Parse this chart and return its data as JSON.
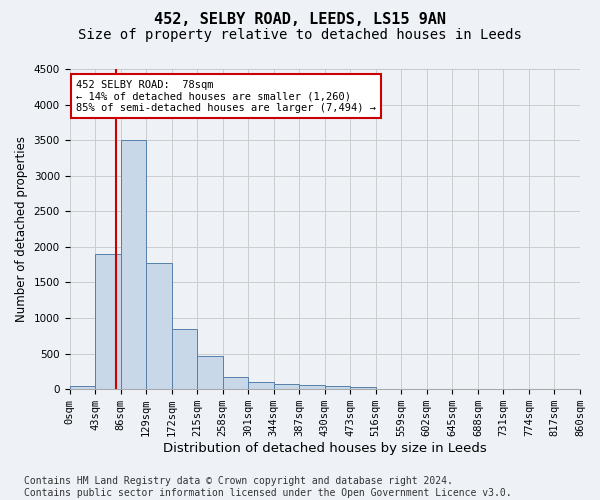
{
  "title1": "452, SELBY ROAD, LEEDS, LS15 9AN",
  "title2": "Size of property relative to detached houses in Leeds",
  "xlabel": "Distribution of detached houses by size in Leeds",
  "ylabel": "Number of detached properties",
  "bin_edges": [
    0,
    43,
    86,
    129,
    172,
    215,
    258,
    301,
    344,
    387,
    430,
    473,
    516,
    559,
    602,
    645,
    688,
    731,
    774,
    817,
    860
  ],
  "bin_labels": [
    "0sqm",
    "43sqm",
    "86sqm",
    "129sqm",
    "172sqm",
    "215sqm",
    "258sqm",
    "301sqm",
    "344sqm",
    "387sqm",
    "430sqm",
    "473sqm",
    "516sqm",
    "559sqm",
    "602sqm",
    "645sqm",
    "688sqm",
    "731sqm",
    "774sqm",
    "817sqm",
    "860sqm"
  ],
  "bar_values": [
    50,
    1900,
    3500,
    1780,
    840,
    460,
    165,
    100,
    70,
    55,
    45,
    35,
    0,
    0,
    0,
    0,
    0,
    0,
    0,
    0
  ],
  "bar_color": "#c8d8e8",
  "bar_edge_color": "#5580aa",
  "property_sqm": 78,
  "annotation_text": "452 SELBY ROAD:  78sqm\n← 14% of detached houses are smaller (1,260)\n85% of semi-detached houses are larger (7,494) →",
  "annotation_box_color": "#ffffff",
  "annotation_box_edge": "#cc0000",
  "vline_color": "#cc0000",
  "ylim": [
    0,
    4500
  ],
  "yticks": [
    0,
    500,
    1000,
    1500,
    2000,
    2500,
    3000,
    3500,
    4000,
    4500
  ],
  "footnote": "Contains HM Land Registry data © Crown copyright and database right 2024.\nContains public sector information licensed under the Open Government Licence v3.0.",
  "bg_color": "#eef2f7",
  "plot_bg_color": "#eef2f7",
  "grid_color": "#cccccc",
  "title1_fontsize": 11,
  "title2_fontsize": 10,
  "xlabel_fontsize": 9.5,
  "ylabel_fontsize": 8.5,
  "tick_fontsize": 7.5,
  "footnote_fontsize": 7
}
